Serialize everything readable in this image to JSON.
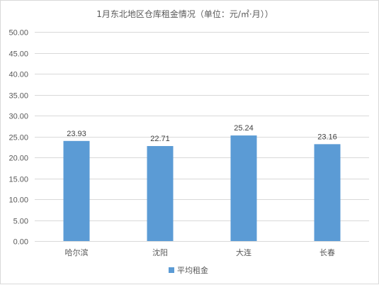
{
  "chart_data": {
    "type": "bar",
    "title": "1月东北地区仓库租金情况（单位：元/㎡·月））",
    "categories": [
      "哈尔滨",
      "沈阳",
      "大连",
      "长春"
    ],
    "series": [
      {
        "name": "平均租金",
        "values": [
          23.93,
          22.71,
          25.24,
          23.16
        ],
        "color": "#5b9bd5"
      }
    ],
    "value_labels": [
      "23.93",
      "22.71",
      "25.24",
      "23.16"
    ],
    "ylim": [
      0,
      50
    ],
    "y_ticks": [
      "0.00",
      "5.00",
      "10.00",
      "15.00",
      "20.00",
      "25.00",
      "30.00",
      "35.00",
      "40.00",
      "45.00",
      "50.00"
    ],
    "grid": true,
    "legend": "bottom"
  }
}
